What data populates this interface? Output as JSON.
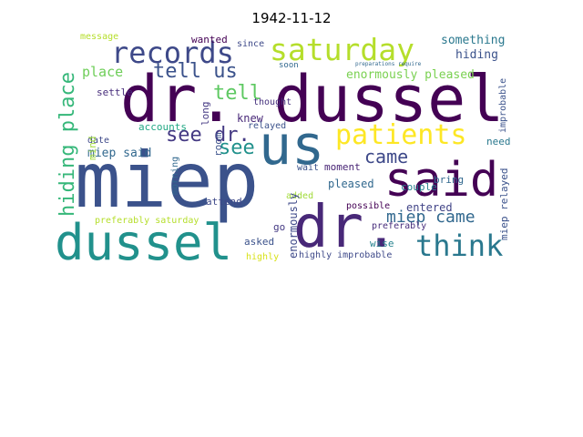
{
  "title": "1942-11-12",
  "words": [
    {
      "text": "miep",
      "color": "#3b528b"
    },
    {
      "text": "dr. dussel",
      "color": "#440154"
    },
    {
      "text": "dr.",
      "color": "#482878"
    },
    {
      "text": "dussel",
      "color": "#21918c"
    },
    {
      "text": "us",
      "color": "#31688e"
    },
    {
      "text": "said",
      "color": "#440154"
    },
    {
      "text": "saturday",
      "color": "#b5de2b"
    },
    {
      "text": "records",
      "color": "#3e4989"
    },
    {
      "text": "patients",
      "color": "#fde725"
    },
    {
      "text": "think",
      "color": "#2a788e"
    },
    {
      "text": "hiding place",
      "color": "#35b779"
    },
    {
      "text": "miep came",
      "color": "#31688e"
    },
    {
      "text": "tell us",
      "color": "#3b528b"
    },
    {
      "text": "see dr.",
      "color": "#443983"
    },
    {
      "text": "tell",
      "color": "#5ec962"
    },
    {
      "text": "see",
      "color": "#21918c"
    },
    {
      "text": "came",
      "color": "#3e4989"
    },
    {
      "text": "enormously pleased",
      "color": "#7ad151"
    },
    {
      "text": "something",
      "color": "#2a788e"
    },
    {
      "text": "hiding",
      "color": "#3b528b"
    },
    {
      "text": "place",
      "color": "#6ece58"
    },
    {
      "text": "miep said",
      "color": "#31688e"
    },
    {
      "text": "knew",
      "color": "#482878"
    },
    {
      "text": "long",
      "color": "#443983"
    },
    {
      "text": "room",
      "color": "#3b528b"
    },
    {
      "text": "mind",
      "color": "#9fda3a"
    },
    {
      "text": "accounts",
      "color": "#22a884"
    },
    {
      "text": "relayed",
      "color": "#3b528b"
    },
    {
      "text": "thought",
      "color": "#46327e"
    },
    {
      "text": "since",
      "color": "#3e4989"
    },
    {
      "text": "wanted",
      "color": "#440154"
    },
    {
      "text": "message",
      "color": "#b5de2b"
    },
    {
      "text": "settle",
      "color": "#472d7b"
    },
    {
      "text": "date",
      "color": "#3e4989"
    },
    {
      "text": "soon",
      "color": "#31688e"
    },
    {
      "text": "moment",
      "color": "#482475"
    },
    {
      "text": "wait",
      "color": "#3b528b"
    },
    {
      "text": "pleased",
      "color": "#31688e"
    },
    {
      "text": "couple",
      "color": "#277f8e"
    },
    {
      "text": "bring",
      "color": "#31688e"
    },
    {
      "text": "need",
      "color": "#2a788e"
    },
    {
      "text": "improbable",
      "color": "#3b528b"
    },
    {
      "text": "added",
      "color": "#a0da39"
    },
    {
      "text": "possible",
      "color": "#440154"
    },
    {
      "text": "preferably",
      "color": "#472d7b"
    },
    {
      "text": "entered",
      "color": "#414487"
    },
    {
      "text": "wise",
      "color": "#26828e"
    },
    {
      "text": "enormously",
      "color": "#3e4989"
    },
    {
      "text": "miep relayed",
      "color": "#3b528b"
    },
    {
      "text": "morning",
      "color": "#31688e"
    },
    {
      "text": "attend",
      "color": "#3e4989"
    },
    {
      "text": "preferably saturday",
      "color": "#b5de2b"
    },
    {
      "text": "go",
      "color": "#443983"
    },
    {
      "text": "asked",
      "color": "#3b528b"
    },
    {
      "text": "highly",
      "color": "#d8e219"
    },
    {
      "text": "highly improbable",
      "color": "#3e4989"
    },
    {
      "text": "preparations require",
      "color": "#31688e"
    }
  ]
}
